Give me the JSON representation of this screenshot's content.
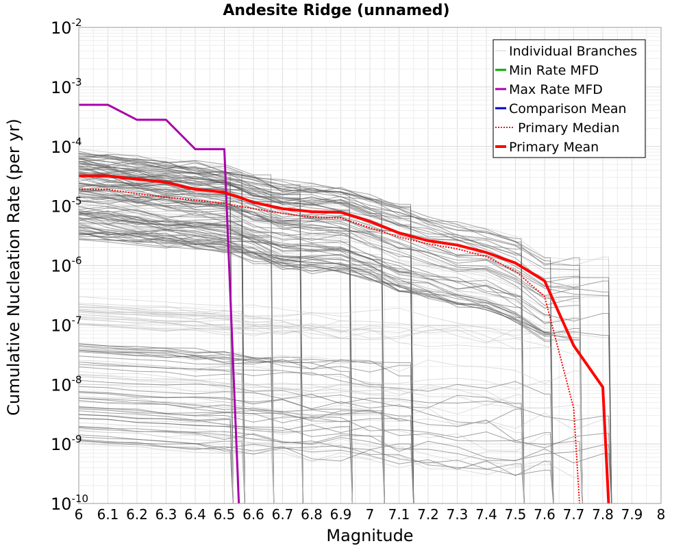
{
  "chart_data": {
    "type": "line",
    "title": "Andesite Ridge (unnamed)",
    "xlabel": "Magnitude",
    "ylabel": "Cumulative Nucleation Rate (per yr)",
    "xlim": [
      6.0,
      8.0
    ],
    "ylim": [
      1e-10,
      0.01
    ],
    "y_scale": "log",
    "grid": true,
    "legend_position": "top-right",
    "x_ticks": [
      "6",
      "6.1",
      "6.2",
      "6.3",
      "6.4",
      "6.5",
      "6.6",
      "6.7",
      "6.8",
      "6.9",
      "7",
      "7.1",
      "7.2",
      "7.3",
      "7.4",
      "7.5",
      "7.6",
      "7.7",
      "7.8",
      "7.9",
      "8"
    ],
    "y_ticks": [
      {
        "base": "10",
        "exp": "-2",
        "value": 0.01
      },
      {
        "base": "10",
        "exp": "-3",
        "value": 0.001
      },
      {
        "base": "10",
        "exp": "-4",
        "value": 0.0001
      },
      {
        "base": "10",
        "exp": "-5",
        "value": 1e-05
      },
      {
        "base": "10",
        "exp": "-6",
        "value": 1e-06
      },
      {
        "base": "10",
        "exp": "-7",
        "value": 1e-07
      },
      {
        "base": "10",
        "exp": "-8",
        "value": 1e-08
      },
      {
        "base": "10",
        "exp": "-9",
        "value": 1e-09
      },
      {
        "base": "10",
        "exp": "-10",
        "value": 1e-10
      }
    ],
    "legend": [
      {
        "name": "Individual Branches",
        "color": "#cccccc",
        "style": "thin"
      },
      {
        "name": "Min Rate MFD",
        "color": "#00aa00",
        "style": "solid"
      },
      {
        "name": "Max Rate MFD",
        "color": "#aa00aa",
        "style": "solid"
      },
      {
        "name": "Comparison Mean",
        "color": "#0000cc",
        "style": "solid"
      },
      {
        "name": "Primary Median",
        "color": "#ff0000",
        "style": "dotted"
      },
      {
        "name": "Primary Mean",
        "color": "#ff0000",
        "style": "thick"
      }
    ],
    "series": [
      {
        "name": "Max Rate MFD",
        "color": "#aa00aa",
        "x": [
          6.0,
          6.1,
          6.2,
          6.3,
          6.4,
          6.5,
          6.55
        ],
        "y": [
          0.0005,
          0.0005,
          0.00028,
          0.00028,
          9e-05,
          9e-05,
          1e-10
        ]
      },
      {
        "name": "Primary Mean",
        "color": "#ff0000",
        "x": [
          6.0,
          6.1,
          6.2,
          6.3,
          6.4,
          6.5,
          6.6,
          6.7,
          6.8,
          6.9,
          7.0,
          7.1,
          7.2,
          7.3,
          7.4,
          7.5,
          7.6,
          7.7,
          7.8,
          7.82
        ],
        "y": [
          3.2e-05,
          3.2e-05,
          2.8e-05,
          2.5e-05,
          1.9e-05,
          1.7e-05,
          1.15e-05,
          9e-06,
          8e-06,
          7.8e-06,
          5.5e-06,
          3.5e-06,
          2.6e-06,
          2.2e-06,
          1.65e-06,
          1.1e-06,
          5.5e-07,
          4.5e-08,
          9e-09,
          1e-10
        ]
      },
      {
        "name": "Primary Median",
        "color": "#ff0000",
        "x": [
          6.0,
          6.1,
          6.2,
          6.3,
          6.4,
          6.5,
          6.6,
          6.7,
          6.8,
          6.9,
          7.0,
          7.1,
          7.2,
          7.3,
          7.4,
          7.5,
          7.6,
          7.7,
          7.72
        ],
        "y": [
          1.9e-05,
          1.9e-05,
          1.6e-05,
          1.4e-05,
          1.25e-05,
          1.1e-05,
          9e-06,
          7.5e-06,
          6.5e-06,
          6.3e-06,
          4.3e-06,
          3e-06,
          2.3e-06,
          1.9e-06,
          1.4e-06,
          8e-07,
          3e-07,
          4e-09,
          1e-10
        ]
      }
    ]
  }
}
